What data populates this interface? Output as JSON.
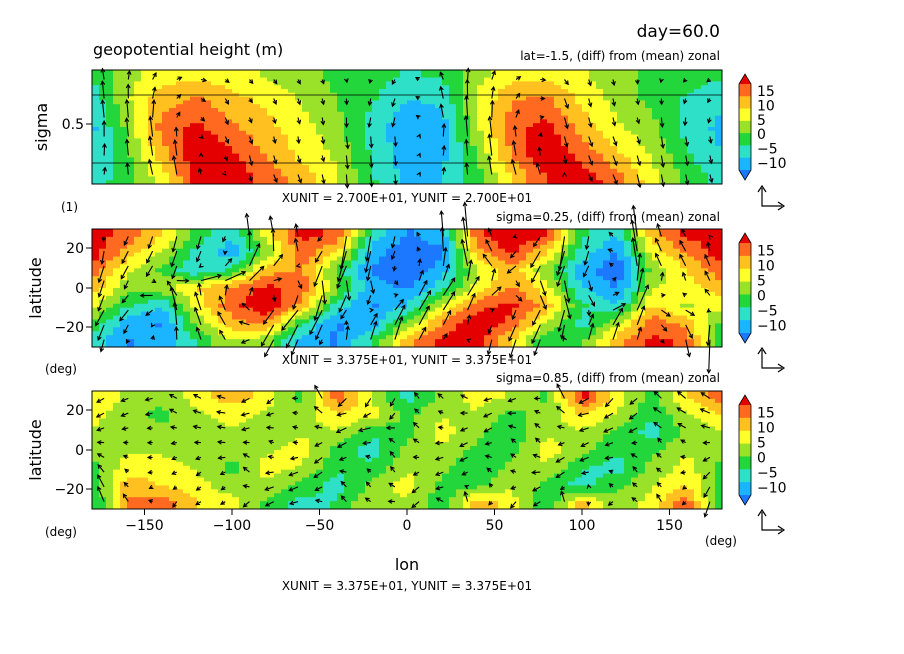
{
  "header": {
    "day_label": "day=60.0",
    "variable_title": "geopotential height (m)"
  },
  "colors": {
    "levels": [
      "#1c78ff",
      "#1bb4ff",
      "#2ee0c8",
      "#22d63c",
      "#9ae22a",
      "#ffff2a",
      "#ffc020",
      "#ff6a20",
      "#e40000"
    ],
    "colorbar": [
      "#1c78ff",
      "#1bb4ff",
      "#2ee0c8",
      "#22d63c",
      "#9ae22a",
      "#ffff2a",
      "#ffc020",
      "#ff6a20",
      "#e40000"
    ],
    "arrow": "#000000"
  },
  "chart_data": [
    {
      "type": "heatmap",
      "title": "lat=-1.5, (diff) from (mean) zonal",
      "ylabel": "sigma",
      "y_unit": "(1)",
      "ytick_labels": [
        "0.5"
      ],
      "yticks": [
        0.5
      ],
      "ylim": [
        1,
        0
      ],
      "xlim": [
        -180,
        180
      ],
      "unit_note": "XUNIT = 2.700E+01, YUNIT = 2.700E+01",
      "colorbar_ticks": [
        "15",
        "10",
        "5",
        "0",
        "−5",
        "−10"
      ],
      "colorbar_values": [
        15,
        10,
        5,
        0,
        -5,
        -10
      ],
      "vector_overlay": true,
      "field": {
        "x_centers": [
          -180,
          -160,
          -140,
          -120,
          -100,
          -80,
          -60,
          -40,
          -20,
          0,
          20,
          40,
          60,
          80,
          100,
          120,
          140,
          160,
          180
        ],
        "y_centers": [
          0.96,
          0.75,
          0.5,
          0.25,
          0.05
        ],
        "values": [
          [
            -6,
            -3,
            4,
            14,
            15,
            12,
            8,
            3,
            -4,
            -9,
            -8,
            -3,
            6,
            13,
            15,
            11,
            4,
            -2,
            -6
          ],
          [
            -8,
            -2,
            8,
            16,
            14,
            9,
            5,
            2,
            -5,
            -10,
            -9,
            -1,
            10,
            16,
            12,
            7,
            2,
            -4,
            -8
          ],
          [
            -9,
            0,
            11,
            14,
            10,
            7,
            4,
            0,
            -6,
            -11,
            -10,
            2,
            12,
            14,
            8,
            3,
            0,
            -6,
            -9
          ],
          [
            -7,
            2,
            8,
            10,
            7,
            5,
            2,
            -1,
            -4,
            -8,
            -7,
            3,
            9,
            10,
            5,
            1,
            -2,
            -5,
            -7
          ],
          [
            -4,
            1,
            4,
            5,
            4,
            2,
            0,
            -2,
            -3,
            -5,
            -4,
            1,
            5,
            5,
            3,
            0,
            -2,
            -3,
            -4
          ]
        ]
      }
    },
    {
      "type": "heatmap",
      "title": "sigma=0.25, (diff) from (mean) zonal",
      "ylabel": "latitude",
      "y_unit": "(deg)",
      "ytick_labels": [
        "20",
        "0",
        "−20"
      ],
      "yticks": [
        20,
        0,
        -20
      ],
      "ylim": [
        -30,
        30
      ],
      "xlim": [
        -180,
        180
      ],
      "unit_note": "XUNIT = 3.375E+01, YUNIT = 3.375E+01",
      "colorbar_ticks": [
        "15",
        "10",
        "5",
        "0",
        "−5",
        "−10"
      ],
      "colorbar_values": [
        15,
        10,
        5,
        0,
        -5,
        -10
      ],
      "vector_overlay": true,
      "field": {
        "x_centers": [
          -180,
          -160,
          -140,
          -120,
          -100,
          -80,
          -60,
          -40,
          -20,
          0,
          20,
          40,
          60,
          80,
          100,
          120,
          140,
          160,
          180
        ],
        "y_centers": [
          27,
          18,
          9,
          0,
          -9,
          -18,
          -27
        ],
        "values": [
          [
            14,
            12,
            6,
            -2,
            -8,
            4,
            14,
            12,
            -6,
            -12,
            -10,
            12,
            16,
            14,
            -4,
            -8,
            8,
            14,
            14
          ],
          [
            15,
            8,
            2,
            -6,
            -10,
            0,
            12,
            6,
            -10,
            -14,
            -12,
            8,
            14,
            6,
            -6,
            -12,
            4,
            10,
            15
          ],
          [
            12,
            3,
            -2,
            -8,
            -4,
            8,
            10,
            -2,
            -12,
            -14,
            -10,
            2,
            8,
            0,
            -10,
            -14,
            0,
            6,
            12
          ],
          [
            8,
            0,
            2,
            6,
            10,
            14,
            12,
            0,
            -10,
            -12,
            -6,
            4,
            10,
            4,
            -8,
            -12,
            2,
            4,
            8
          ],
          [
            4,
            -4,
            -8,
            4,
            12,
            16,
            8,
            -6,
            -12,
            -8,
            2,
            12,
            14,
            8,
            -4,
            -8,
            6,
            2,
            4
          ],
          [
            -2,
            -10,
            -12,
            0,
            8,
            10,
            -4,
            -12,
            -10,
            0,
            10,
            16,
            12,
            2,
            -6,
            2,
            12,
            8,
            -2
          ],
          [
            -6,
            -12,
            -10,
            -4,
            2,
            0,
            -10,
            -12,
            -4,
            8,
            14,
            14,
            6,
            -4,
            -2,
            8,
            14,
            12,
            -6
          ]
        ]
      }
    },
    {
      "type": "heatmap",
      "title": "sigma=0.85, (diff) from (mean) zonal",
      "ylabel": "latitude",
      "y_unit": "(deg)",
      "xlabel": "lon",
      "x_unit": "(deg)",
      "xtick_labels": [
        "−150",
        "−100",
        "−50",
        "0",
        "50",
        "100",
        "150"
      ],
      "xticks": [
        -150,
        -100,
        -50,
        0,
        50,
        100,
        150
      ],
      "ytick_labels": [
        "20",
        "0",
        "−20"
      ],
      "yticks": [
        20,
        0,
        -20
      ],
      "ylim": [
        -30,
        30
      ],
      "xlim": [
        -180,
        180
      ],
      "unit_note": "XUNIT = 3.375E+01, YUNIT = 3.375E+01",
      "colorbar_ticks": [
        "15",
        "10",
        "5",
        "0",
        "−5",
        "−10"
      ],
      "colorbar_values": [
        15,
        10,
        5,
        0,
        -5,
        -10
      ],
      "vector_overlay": true,
      "field": {
        "x_centers": [
          -180,
          -160,
          -140,
          -120,
          -100,
          -80,
          -60,
          -40,
          -20,
          0,
          20,
          40,
          60,
          80,
          100,
          120,
          140,
          160,
          180
        ],
        "y_centers": [
          27,
          18,
          9,
          0,
          -9,
          -18,
          -27
        ],
        "values": [
          [
            6,
            2,
            0,
            4,
            8,
            4,
            -2,
            12,
            2,
            -6,
            0,
            4,
            2,
            -2,
            14,
            4,
            -2,
            6,
            12
          ],
          [
            4,
            0,
            -2,
            2,
            4,
            2,
            0,
            6,
            4,
            -2,
            2,
            2,
            -2,
            0,
            6,
            2,
            -4,
            2,
            6
          ],
          [
            2,
            0,
            0,
            0,
            2,
            0,
            2,
            2,
            -4,
            -2,
            4,
            0,
            -4,
            2,
            2,
            -2,
            -6,
            0,
            2
          ],
          [
            0,
            2,
            2,
            0,
            0,
            2,
            4,
            -2,
            -6,
            0,
            2,
            -2,
            -2,
            4,
            0,
            -4,
            -2,
            2,
            0
          ],
          [
            -2,
            4,
            4,
            2,
            -2,
            4,
            2,
            -4,
            -4,
            2,
            0,
            -4,
            0,
            2,
            -4,
            -6,
            0,
            4,
            -2
          ],
          [
            -4,
            8,
            6,
            4,
            0,
            2,
            -2,
            -6,
            0,
            4,
            -2,
            -2,
            2,
            -2,
            -6,
            -2,
            2,
            6,
            -4
          ],
          [
            -6,
            10,
            12,
            6,
            4,
            -2,
            -6,
            -4,
            2,
            2,
            -4,
            8,
            4,
            -4,
            8,
            0,
            4,
            12,
            -6
          ]
        ]
      }
    }
  ]
}
